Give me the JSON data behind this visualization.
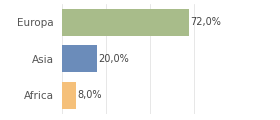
{
  "categories": [
    "Africa",
    "Asia",
    "Europa"
  ],
  "values": [
    8.0,
    20.0,
    72.0
  ],
  "bar_colors": [
    "#f5c07a",
    "#6b8cba",
    "#a8bc8a"
  ],
  "labels": [
    "8,0%",
    "20,0%",
    "72,0%"
  ],
  "xlim": [
    0,
    100
  ],
  "background_color": "#ffffff",
  "bar_height": 0.75,
  "label_fontsize": 7,
  "tick_fontsize": 7.5,
  "grid_color": "#dddddd",
  "grid_linewidth": 0.5
}
